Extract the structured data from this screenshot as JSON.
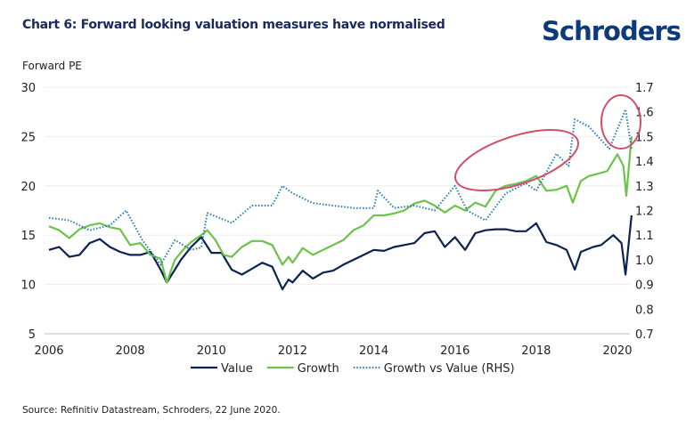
{
  "title": "Chart 6: Forward looking valuation measures have normalised",
  "logo": "Schroders",
  "source": "Source: Refinitiv Datastream, Schroders, 22 June 2020.",
  "chart_data": {
    "type": "line",
    "ylabel": "Forward PE",
    "y_left": {
      "range": [
        5,
        30
      ],
      "ticks": [
        5,
        10,
        15,
        20,
        25,
        30
      ]
    },
    "y_right": {
      "range": [
        0.7,
        1.7
      ],
      "ticks": [
        "0.7",
        "0.8",
        "0.9",
        "1.0",
        "1.1",
        "1.2",
        "1.3",
        "1.4",
        "1.5",
        "1.6",
        "1.7"
      ]
    },
    "x_ticks": [
      2006,
      2008,
      2010,
      2012,
      2014,
      2016,
      2018,
      2020
    ],
    "grid": "horizontal",
    "legend_placement": "bottom",
    "annotations": [
      "red ellipse around 2016.5–2018.8 Growth vs Value rise",
      "red circle around 2020 peak"
    ],
    "annotation_color": "#d0506a",
    "series": [
      {
        "name": "Value",
        "axis": "left",
        "color": "#0c2352",
        "style": "solid",
        "x": [
          2006.0,
          2006.25,
          2006.5,
          2006.75,
          2007.0,
          2007.25,
          2007.5,
          2007.75,
          2008.0,
          2008.25,
          2008.5,
          2008.75,
          2008.9,
          2009.1,
          2009.25,
          2009.5,
          2009.75,
          2010.0,
          2010.25,
          2010.5,
          2010.75,
          2011.0,
          2011.25,
          2011.5,
          2011.75,
          2011.9,
          2012.0,
          2012.25,
          2012.5,
          2012.75,
          2013.0,
          2013.25,
          2013.5,
          2013.75,
          2014.0,
          2014.25,
          2014.5,
          2014.75,
          2015.0,
          2015.25,
          2015.5,
          2015.75,
          2016.0,
          2016.25,
          2016.5,
          2016.75,
          2017.0,
          2017.25,
          2017.5,
          2017.75,
          2018.0,
          2018.25,
          2018.5,
          2018.75,
          2018.95,
          2019.1,
          2019.4,
          2019.6,
          2019.9,
          2020.1,
          2020.2,
          2020.35
        ],
        "values": [
          13.5,
          13.8,
          12.8,
          13.0,
          14.2,
          14.6,
          13.8,
          13.3,
          13.0,
          13.0,
          13.3,
          11.5,
          10.2,
          11.5,
          12.5,
          13.8,
          14.8,
          13.2,
          13.2,
          11.5,
          11.0,
          11.6,
          12.2,
          11.8,
          9.5,
          10.5,
          10.2,
          11.4,
          10.6,
          11.2,
          11.4,
          12.0,
          12.5,
          13.0,
          13.5,
          13.4,
          13.8,
          14.0,
          14.2,
          15.2,
          15.4,
          13.8,
          14.8,
          13.5,
          15.2,
          15.5,
          15.6,
          15.6,
          15.4,
          15.4,
          16.2,
          14.3,
          14.0,
          13.5,
          11.5,
          13.3,
          13.8,
          14.0,
          15.0,
          14.2,
          11.0,
          17.0
        ]
      },
      {
        "name": "Growth",
        "axis": "left",
        "color": "#6cc24a",
        "style": "solid",
        "x": [
          2006.0,
          2006.25,
          2006.5,
          2006.75,
          2007.0,
          2007.25,
          2007.5,
          2007.75,
          2008.0,
          2008.25,
          2008.5,
          2008.75,
          2008.9,
          2009.1,
          2009.3,
          2009.5,
          2009.75,
          2009.9,
          2010.1,
          2010.3,
          2010.5,
          2010.75,
          2011.0,
          2011.25,
          2011.5,
          2011.75,
          2011.9,
          2012.0,
          2012.25,
          2012.5,
          2012.75,
          2013.0,
          2013.25,
          2013.5,
          2013.75,
          2014.0,
          2014.25,
          2014.5,
          2014.75,
          2015.0,
          2015.25,
          2015.5,
          2015.75,
          2016.0,
          2016.25,
          2016.5,
          2016.75,
          2017.0,
          2017.25,
          2017.5,
          2017.75,
          2018.0,
          2018.25,
          2018.5,
          2018.75,
          2018.9,
          2019.1,
          2019.3,
          2019.5,
          2019.75,
          2020.0,
          2020.15,
          2020.22,
          2020.35
        ],
        "values": [
          15.9,
          15.5,
          14.7,
          15.6,
          16.0,
          16.2,
          15.8,
          15.6,
          14.0,
          14.2,
          13.0,
          12.6,
          10.2,
          12.5,
          13.5,
          14.3,
          15.0,
          15.5,
          14.5,
          13.0,
          12.8,
          13.8,
          14.4,
          14.4,
          14.0,
          12.0,
          12.8,
          12.2,
          13.7,
          13.0,
          13.5,
          14.0,
          14.5,
          15.5,
          16.0,
          17.0,
          17.0,
          17.2,
          17.5,
          18.2,
          18.5,
          18.0,
          17.3,
          18.0,
          17.5,
          18.3,
          17.9,
          19.5,
          20.0,
          20.2,
          20.5,
          21.0,
          19.5,
          19.6,
          20.0,
          18.3,
          20.5,
          21.0,
          21.2,
          21.5,
          23.2,
          22.0,
          19.0,
          25.0
        ]
      },
      {
        "name": "Growth vs Value (RHS)",
        "axis": "right",
        "color": "#2a7ab8",
        "style": "dotted",
        "x": [
          2006.0,
          2006.5,
          2007.0,
          2007.5,
          2007.9,
          2008.3,
          2008.75,
          2009.1,
          2009.5,
          2009.75,
          2009.9,
          2010.5,
          2011.0,
          2011.5,
          2011.75,
          2012.0,
          2012.5,
          2013.0,
          2013.5,
          2014.0,
          2014.1,
          2014.5,
          2015.0,
          2015.5,
          2016.0,
          2016.3,
          2016.75,
          2017.25,
          2017.75,
          2018.0,
          2018.5,
          2018.8,
          2018.95,
          2019.3,
          2019.8,
          2020.1,
          2020.2,
          2020.35
        ],
        "values": [
          1.17,
          1.16,
          1.12,
          1.14,
          1.2,
          1.08,
          0.98,
          1.08,
          1.04,
          1.05,
          1.19,
          1.15,
          1.22,
          1.22,
          1.3,
          1.27,
          1.23,
          1.22,
          1.21,
          1.21,
          1.28,
          1.21,
          1.22,
          1.2,
          1.3,
          1.2,
          1.16,
          1.27,
          1.31,
          1.28,
          1.43,
          1.38,
          1.57,
          1.54,
          1.45,
          1.57,
          1.61,
          1.45
        ]
      }
    ]
  }
}
